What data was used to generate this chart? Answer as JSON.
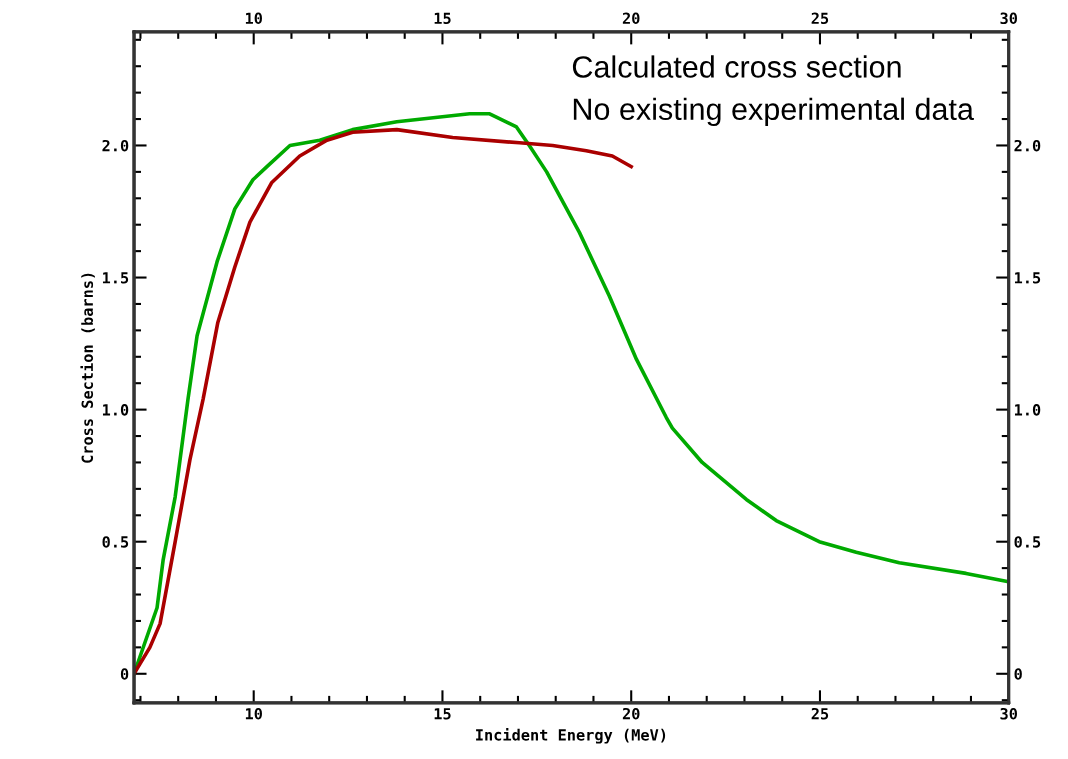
{
  "chart_data": {
    "type": "line",
    "xlabel": "Incident Energy (MeV)",
    "ylabel": "Cross Section (barns)",
    "annotations": [
      "Calculated cross section",
      "No existing experimental data"
    ],
    "series": [
      {
        "color": "#00aa00",
        "x": [
          6.83,
          7.44,
          7.6,
          7.92,
          8.26,
          8.5,
          9.03,
          9.5,
          9.98,
          10.35,
          10.96,
          11.75,
          12.62,
          13.79,
          15.72,
          16.25,
          16.96,
          17.3,
          17.76,
          18.63,
          19.42,
          20.14,
          20.93,
          21.09,
          21.88,
          23.05,
          23.84,
          24.98,
          25.96,
          27.1,
          28.87,
          29.95
        ],
        "values": [
          0,
          0.25,
          0.43,
          0.67,
          1.04,
          1.28,
          1.56,
          1.76,
          1.87,
          1.92,
          2.0,
          2.02,
          2.06,
          2.09,
          2.12,
          2.12,
          2.07,
          2.0,
          1.9,
          1.67,
          1.43,
          1.19,
          0.97,
          0.93,
          0.8,
          0.66,
          0.58,
          0.5,
          0.46,
          0.42,
          0.38,
          0.35
        ]
      },
      {
        "color": "#aa0000",
        "x": [
          6.83,
          7.25,
          7.52,
          7.92,
          8.31,
          8.66,
          9.05,
          9.5,
          9.9,
          10.48,
          11.22,
          11.94,
          12.62,
          13.79,
          15.27,
          17.04,
          17.92,
          18.81,
          19.5,
          20.0
        ],
        "values": [
          0,
          0.1,
          0.19,
          0.5,
          0.81,
          1.04,
          1.33,
          1.54,
          1.71,
          1.86,
          1.96,
          2.02,
          2.05,
          2.06,
          2.03,
          2.01,
          2.0,
          1.98,
          1.96,
          1.92
        ]
      }
    ],
    "xlim": [
      6.83,
      30
    ],
    "xticks": [
      10,
      15,
      20,
      25,
      30
    ],
    "x2lim": [
      6.83,
      30
    ],
    "x2ticks": [
      10,
      15,
      20,
      25,
      30
    ],
    "ylim": [
      -0.11,
      2.43
    ],
    "yticks": [
      0,
      0.5,
      {
        "value": 1,
        "label": "1.0"
      },
      1.5,
      {
        "value": 2,
        "label": "2.0"
      }
    ],
    "y2lim": [
      -0.11,
      2.43
    ],
    "y2ticks": [
      0,
      0.5,
      {
        "value": 1,
        "label": "1.0"
      },
      1.5,
      {
        "value": 2,
        "label": "2.0"
      }
    ],
    "grid": false,
    "legend": false,
    "marker": "none",
    "line_style": "solid"
  }
}
